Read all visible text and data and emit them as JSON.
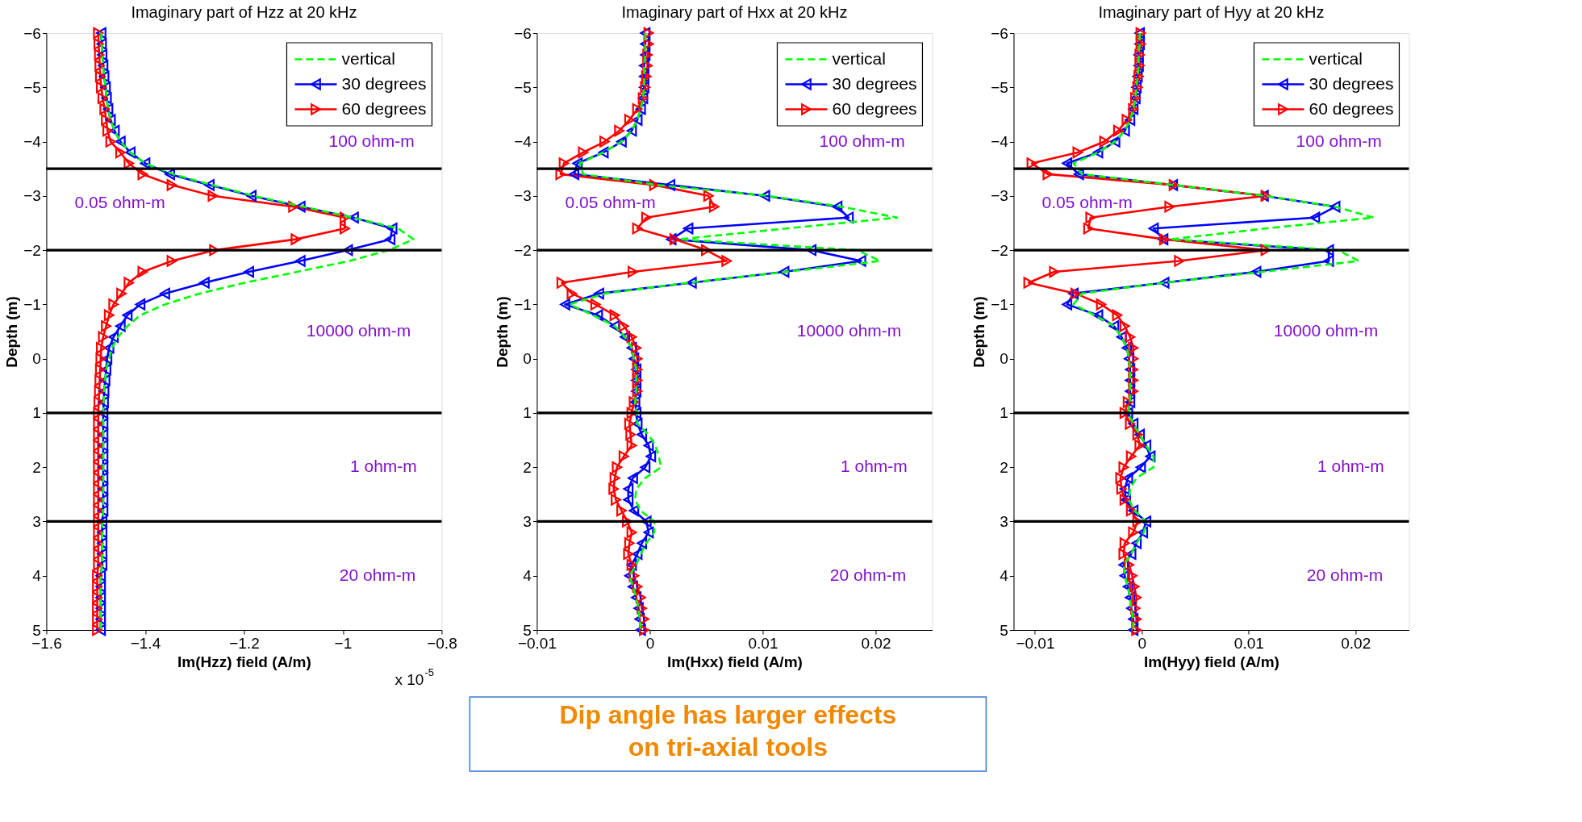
{
  "chart_data": [
    {
      "type": "line",
      "title": "Imaginary part of Hzz at 20 kHz",
      "xlabel": "Im(Hzz) field (A/m)",
      "ylabel": "Depth (m)",
      "orientation": "horizontal",
      "legend": "top right",
      "grid": false,
      "x": [
        -6,
        -5.8,
        -5.6,
        -5.4,
        -5.2,
        -5,
        -4.8,
        -4.6,
        -4.4,
        -4.2,
        -4,
        -3.8,
        -3.6,
        -3.4,
        -3.2,
        -3,
        -2.8,
        -2.6,
        -2.4,
        -2.2,
        -2,
        -1.8,
        -1.6,
        -1.4,
        -1.2,
        -1,
        -0.8,
        -0.6,
        -0.4,
        -0.2,
        0,
        0.2,
        0.4,
        0.6,
        0.8,
        1,
        1.2,
        1.4,
        1.6,
        1.8,
        2,
        2.2,
        2.4,
        2.6,
        2.8,
        3,
        3.2,
        3.4,
        3.6,
        3.8,
        4,
        4.2,
        4.4,
        4.6,
        4.8,
        5
      ],
      "xlim": [
        -1.6,
        -0.8
      ],
      "xticks": [
        -1.6,
        -1.4,
        -1.2,
        -1,
        -0.8
      ],
      "ylim": [
        5,
        -6
      ],
      "yticks": [
        -6,
        -5,
        -4,
        -3,
        -2,
        -1,
        0,
        1,
        2,
        3,
        4,
        5
      ],
      "series": [
        {
          "name": "vertical",
          "color": "#00ff00",
          "line_style": "dashed",
          "marker": "none",
          "values": [
            -1.489,
            -1.488,
            -1.487,
            -1.485,
            -1.483,
            -1.48,
            -1.478,
            -1.475,
            -1.47,
            -1.462,
            -1.45,
            -1.43,
            -1.4,
            -1.343,
            -1.265,
            -1.18,
            -1.08,
            -0.98,
            -0.888,
            -0.857,
            -0.907,
            -0.987,
            -1.092,
            -1.198,
            -1.29,
            -1.36,
            -1.41,
            -1.436,
            -1.455,
            -1.467,
            -1.473,
            -1.479,
            -1.481,
            -1.483,
            -1.484,
            -1.485,
            -1.485,
            -1.485,
            -1.485,
            -1.485,
            -1.485,
            -1.485,
            -1.485,
            -1.485,
            -1.485,
            -1.487,
            -1.487,
            -1.487,
            -1.487,
            -1.487,
            -1.49,
            -1.49,
            -1.49,
            -1.49,
            -1.49,
            -1.49
          ]
        },
        {
          "name": "30 degrees",
          "color": "#0000ff",
          "line_style": "solid",
          "marker": "triangle-left",
          "values": [
            -1.489,
            -1.488,
            -1.487,
            -1.485,
            -1.483,
            -1.48,
            -1.478,
            -1.475,
            -1.47,
            -1.462,
            -1.45,
            -1.43,
            -1.4,
            -1.35,
            -1.27,
            -1.185,
            -1.086,
            -0.978,
            -0.9,
            -0.904,
            -0.99,
            -1.086,
            -1.19,
            -1.28,
            -1.36,
            -1.41,
            -1.436,
            -1.45,
            -1.464,
            -1.473,
            -1.477,
            -1.479,
            -1.481,
            -1.483,
            -1.484,
            -1.485,
            -1.485,
            -1.485,
            -1.485,
            -1.485,
            -1.485,
            -1.485,
            -1.485,
            -1.485,
            -1.485,
            -1.487,
            -1.487,
            -1.487,
            -1.487,
            -1.487,
            -1.49,
            -1.49,
            -1.49,
            -1.49,
            -1.49,
            -1.49
          ]
        },
        {
          "name": "60 degrees",
          "color": "#ff0000",
          "line_style": "solid",
          "marker": "triangle-right",
          "values": [
            -1.495,
            -1.494,
            -1.493,
            -1.492,
            -1.491,
            -1.489,
            -1.486,
            -1.482,
            -1.479,
            -1.476,
            -1.47,
            -1.45,
            -1.433,
            -1.405,
            -1.346,
            -1.263,
            -1.1,
            -0.996,
            -0.996,
            -1.095,
            -1.26,
            -1.346,
            -1.405,
            -1.433,
            -1.448,
            -1.464,
            -1.473,
            -1.479,
            -1.485,
            -1.489,
            -1.49,
            -1.491,
            -1.492,
            -1.493,
            -1.494,
            -1.495,
            -1.495,
            -1.495,
            -1.495,
            -1.495,
            -1.495,
            -1.495,
            -1.495,
            -1.495,
            -1.495,
            -1.495,
            -1.495,
            -1.495,
            -1.495,
            -1.495,
            -1.497,
            -1.497,
            -1.497,
            -1.497,
            -1.497,
            -1.497
          ]
        }
      ],
      "ref_lines": [
        {
          "axis": "y",
          "value": -3.5,
          "color": "#000000"
        },
        {
          "axis": "y",
          "value": -2,
          "color": "#000000"
        },
        {
          "axis": "y",
          "value": 1,
          "color": "#000000"
        },
        {
          "axis": "y",
          "value": 3,
          "color": "#000000"
        }
      ],
      "annotations": [
        "100 ohm-m",
        "0.05 ohm-m",
        "10000 ohm-m",
        "1 ohm-m",
        "20 ohm-m",
        "x 10$^{-5}$"
      ]
    },
    {
      "type": "line",
      "title": "Imaginary part of Hxx at 20 kHz",
      "xlabel": "Im(Hxx) field (A/m)",
      "ylabel": "Depth (m)",
      "orientation": "horizontal",
      "legend": "top right",
      "grid": false,
      "x": [
        -6,
        -5.8,
        -5.6,
        -5.4,
        -5.2,
        -5,
        -4.8,
        -4.6,
        -4.4,
        -4.2,
        -4,
        -3.8,
        -3.6,
        -3.4,
        -3.2,
        -3,
        -2.8,
        -2.6,
        -2.4,
        -2.2,
        -2,
        -1.8,
        -1.6,
        -1.4,
        -1.2,
        -1,
        -0.8,
        -0.6,
        -0.4,
        -0.2,
        0,
        0.2,
        0.4,
        0.6,
        0.8,
        1,
        1.2,
        1.4,
        1.6,
        1.8,
        2,
        2.2,
        2.4,
        2.6,
        2.8,
        3,
        3.2,
        3.4,
        3.6,
        3.8,
        4,
        4.2,
        4.4,
        4.6,
        4.8,
        5
      ],
      "xlim": [
        -0.01,
        0.025
      ],
      "xticks": [
        -0.01,
        0,
        0.01,
        0.02
      ],
      "ylim": [
        5,
        -6
      ],
      "yticks": [
        -6,
        -5,
        -4,
        -3,
        -2,
        -1,
        0,
        1,
        2,
        3,
        4,
        5
      ],
      "series": [
        {
          "name": "vertical",
          "color": "#00ff00",
          "line_style": "dashed",
          "marker": "none",
          "values": [
            -0.0004,
            -0.0004,
            -0.0004,
            -0.0005,
            -0.0005,
            -0.0005,
            -0.0006,
            -0.0008,
            -0.0011,
            -0.0016,
            -0.0025,
            -0.0041,
            -0.0062,
            -0.0059,
            0.0007,
            0.0105,
            0.017,
            0.0219,
            0.0121,
            0.0026,
            0.0184,
            0.0204,
            0.0121,
            0.0034,
            -0.004,
            -0.0071,
            -0.005,
            -0.0031,
            -0.0022,
            -0.0016,
            -0.0014,
            -0.0012,
            -0.0012,
            -0.0012,
            -0.0013,
            -0.0012,
            -0.0011,
            -0.0001,
            0.0005,
            0.0008,
            0.001,
            -0.0004,
            -0.0012,
            -0.0013,
            -0.0008,
            0.0004,
            0.0004,
            -0.0003,
            -0.0008,
            -0.0012,
            -0.0018,
            -0.0015,
            -0.0012,
            -0.001,
            -0.0009,
            -0.0008
          ]
        },
        {
          "name": "30 degrees",
          "color": "#0000ff",
          "line_style": "solid",
          "marker": "triangle-left",
          "values": [
            -0.0004,
            -0.0004,
            -0.0004,
            -0.0005,
            -0.0005,
            -0.0005,
            -0.0006,
            -0.0008,
            -0.0011,
            -0.0016,
            -0.0025,
            -0.0041,
            -0.0064,
            -0.0067,
            0.0018,
            0.0102,
            0.0166,
            0.0176,
            0.0034,
            0.0019,
            0.0143,
            0.0187,
            0.0119,
            0.0037,
            -0.0045,
            -0.0075,
            -0.0046,
            -0.0031,
            -0.0022,
            -0.0016,
            -0.0014,
            -0.0012,
            -0.0012,
            -0.0012,
            -0.0013,
            -0.0012,
            -0.0011,
            -0.0007,
            -0.0001,
            0.0001,
            -0.0004,
            -0.0015,
            -0.0019,
            -0.0019,
            -0.0014,
            -0.0003,
            -0.0001,
            -0.0007,
            -0.0011,
            -0.0016,
            -0.0018,
            -0.0015,
            -0.0012,
            -0.001,
            -0.0009,
            -0.0008
          ]
        },
        {
          "name": "60 degrees",
          "color": "#ff0000",
          "line_style": "solid",
          "marker": "triangle-right",
          "values": [
            -0.0001,
            -0.0001,
            -0.0002,
            -0.0002,
            -0.0003,
            -0.0004,
            -0.0006,
            -0.0011,
            -0.0018,
            -0.0027,
            -0.004,
            -0.0059,
            -0.0076,
            -0.0079,
            0.0004,
            0.0052,
            0.0057,
            -0.0003,
            -0.0011,
            0.0022,
            0.005,
            0.0068,
            -0.0015,
            -0.0078,
            -0.0069,
            -0.0048,
            -0.0031,
            -0.0023,
            -0.0016,
            -0.0012,
            -0.0011,
            -0.0011,
            -0.0011,
            -0.0011,
            -0.0014,
            -0.0016,
            -0.0018,
            -0.0017,
            -0.0016,
            -0.0023,
            -0.0029,
            -0.0031,
            -0.0032,
            -0.003,
            -0.0025,
            -0.002,
            -0.0016,
            -0.0018,
            -0.0019,
            -0.0016,
            -0.0014,
            -0.0011,
            -0.0008,
            -0.0007,
            -0.0005,
            -0.0005
          ]
        }
      ],
      "ref_lines": [
        {
          "axis": "y",
          "value": -3.5,
          "color": "#000000"
        },
        {
          "axis": "y",
          "value": -2,
          "color": "#000000"
        },
        {
          "axis": "y",
          "value": 1,
          "color": "#000000"
        },
        {
          "axis": "y",
          "value": 3,
          "color": "#000000"
        }
      ],
      "annotations": [
        "100 ohm-m",
        "0.05 ohm-m",
        "10000 ohm-m",
        "1 ohm-m",
        "20 ohm-m"
      ]
    },
    {
      "type": "line",
      "title": "Imaginary part of Hyy at 20 kHz",
      "xlabel": "Im(Hyy) field (A/m)",
      "ylabel": "Depth (m)",
      "orientation": "horizontal",
      "legend": "top right",
      "grid": false,
      "x": [
        -6,
        -5.8,
        -5.6,
        -5.4,
        -5.2,
        -5,
        -4.8,
        -4.6,
        -4.4,
        -4.2,
        -4,
        -3.8,
        -3.6,
        -3.4,
        -3.2,
        -3,
        -2.8,
        -2.6,
        -2.4,
        -2.2,
        -2,
        -1.8,
        -1.6,
        -1.4,
        -1.2,
        -1,
        -0.8,
        -0.6,
        -0.4,
        -0.2,
        0,
        0.2,
        0.4,
        0.6,
        0.8,
        1,
        1.2,
        1.4,
        1.6,
        1.8,
        2,
        2.2,
        2.4,
        2.6,
        2.8,
        3,
        3.2,
        3.4,
        3.6,
        3.8,
        4,
        4.2,
        4.4,
        4.6,
        4.8,
        5
      ],
      "xlim": [
        -0.012,
        0.025
      ],
      "xticks": [
        -0.01,
        0,
        0.01,
        0.02
      ],
      "ylim": [
        5,
        -6
      ],
      "yticks": [
        -6,
        -5,
        -4,
        -3,
        -2,
        -1,
        0,
        1,
        2,
        3,
        4,
        5
      ],
      "series": [
        {
          "name": "vertical",
          "color": "#00ff00",
          "line_style": "dashed",
          "marker": "none",
          "values": [
            -0.0002,
            -0.0002,
            -0.0003,
            -0.0003,
            -0.0004,
            -0.0005,
            -0.0006,
            -0.0008,
            -0.0011,
            -0.0016,
            -0.0025,
            -0.0041,
            -0.0064,
            -0.0056,
            0.003,
            0.0116,
            0.0181,
            0.0217,
            0.0116,
            0.0027,
            0.0184,
            0.0203,
            0.0113,
            0.0021,
            -0.0056,
            -0.0064,
            -0.0044,
            -0.0026,
            -0.0019,
            -0.0014,
            -0.0012,
            -0.0011,
            -0.0011,
            -0.0011,
            -0.0011,
            -0.0013,
            -0.0008,
            -0.0002,
            0.0004,
            0.0011,
            0.0011,
            -0.0005,
            -0.0011,
            -0.0012,
            -0.0007,
            0.0004,
            0.0002,
            -0.0005,
            -0.001,
            -0.0017,
            -0.0016,
            -0.0013,
            -0.0011,
            -0.001,
            -0.0008,
            -0.0008
          ]
        },
        {
          "name": "30 degrees",
          "color": "#0000ff",
          "line_style": "solid",
          "marker": "triangle-left",
          "values": [
            -0.0002,
            -0.0002,
            -0.0003,
            -0.0003,
            -0.0004,
            -0.0005,
            -0.0006,
            -0.0008,
            -0.0011,
            -0.0016,
            -0.0025,
            -0.0041,
            -0.007,
            -0.0059,
            0.0029,
            0.0114,
            0.0181,
            0.0162,
            0.0011,
            0.002,
            0.0175,
            0.0175,
            0.0107,
            0.0021,
            -0.0064,
            -0.007,
            -0.0041,
            -0.0026,
            -0.0019,
            -0.0014,
            -0.0012,
            -0.0011,
            -0.0011,
            -0.0011,
            -0.0011,
            -0.0013,
            -0.0008,
            -0.0002,
            0.0004,
            0.0008,
            -0.0001,
            -0.0013,
            -0.0016,
            -0.0015,
            -0.0008,
            0.0004,
            0.0001,
            -0.0005,
            -0.001,
            -0.0017,
            -0.0016,
            -0.0013,
            -0.0011,
            -0.001,
            -0.0008,
            -0.0008
          ]
        },
        {
          "name": "60 degrees",
          "color": "#ff0000",
          "line_style": "solid",
          "marker": "triangle-right",
          "values": [
            -0.0001,
            -0.0001,
            -0.0002,
            -0.0002,
            -0.0003,
            -0.0004,
            -0.0006,
            -0.0008,
            -0.0014,
            -0.0022,
            -0.0035,
            -0.006,
            -0.0103,
            -0.0088,
            0.003,
            0.0116,
            0.0026,
            -0.0048,
            -0.005,
            0.0021,
            0.0116,
            0.0035,
            -0.0082,
            -0.0106,
            -0.0062,
            -0.0038,
            -0.0023,
            -0.0016,
            -0.0011,
            -0.0008,
            -0.0008,
            -0.0008,
            -0.0008,
            -0.0008,
            -0.0013,
            -0.0016,
            -0.0011,
            -0.0004,
            -0.0002,
            -0.001,
            -0.0017,
            -0.002,
            -0.0019,
            -0.0016,
            -0.001,
            -0.0004,
            -0.0008,
            -0.0016,
            -0.0017,
            -0.0012,
            -0.0009,
            -0.0007,
            -0.0005,
            -0.0006,
            -0.0005,
            -0.0005
          ]
        }
      ],
      "ref_lines": [
        {
          "axis": "y",
          "value": -3.5,
          "color": "#000000"
        },
        {
          "axis": "y",
          "value": -2,
          "color": "#000000"
        },
        {
          "axis": "y",
          "value": 1,
          "color": "#000000"
        },
        {
          "axis": "y",
          "value": 3,
          "color": "#000000"
        }
      ],
      "annotations": [
        "100 ohm-m",
        "0.05 ohm-m",
        "10000 ohm-m",
        "1 ohm-m",
        "20 ohm-m",
        "Dip angle has larger effects\non tri-axial tools"
      ]
    }
  ]
}
